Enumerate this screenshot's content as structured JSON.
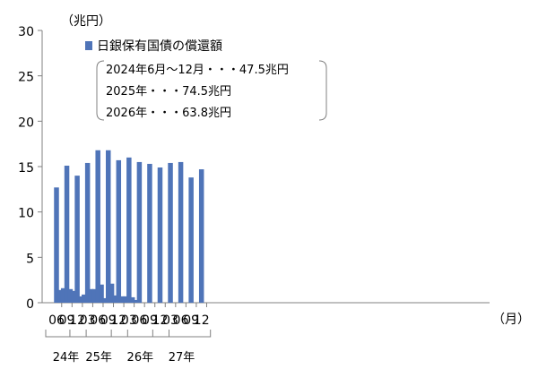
{
  "chart_data": {
    "type": "bar",
    "ylabel": "（兆円）",
    "xunit": "（月）",
    "ylim": [
      0,
      30
    ],
    "yticks": [
      0,
      5,
      10,
      15,
      20,
      25,
      30
    ],
    "grid": false,
    "legend_position": "top-left",
    "series": [
      {
        "name": "日銀保有国債の償還額",
        "color": "#4f74b8",
        "values": [
          12.7,
          1.4,
          1.6,
          15.1,
          1.5,
          1.3,
          14.0,
          0.7,
          0.9,
          15.4,
          1.5,
          1.5,
          16.8,
          2.0,
          0.5,
          16.8,
          2.1,
          0.8,
          15.7,
          0.7,
          0.7,
          16.0,
          0.6,
          0.3,
          15.5,
          15.3,
          14.9,
          15.4,
          15.5,
          13.8,
          14.7
        ]
      }
    ],
    "categories": [
      "2024-06",
      "2024-07",
      "2024-08",
      "2024-09",
      "2024-10",
      "2024-11",
      "2024-12",
      "2025-01",
      "2025-02",
      "2025-03",
      "2025-04",
      "2025-05",
      "2025-06",
      "2025-07",
      "2025-08",
      "2025-09",
      "2025-10",
      "2025-11",
      "2025-12",
      "2026-01",
      "2026-02",
      "2026-03",
      "2026-04",
      "2026-05",
      "2026-06",
      "2026-09",
      "2026-12",
      "2027-03",
      "2027-06",
      "2027-09",
      "2027-12"
    ],
    "xtick_labels": [
      "06",
      "09",
      "12",
      "03",
      "06",
      "09",
      "12",
      "03",
      "06",
      "09",
      "12",
      "03",
      "06",
      "09",
      "12"
    ],
    "year_labels": [
      "24年",
      "25年",
      "26年",
      "27年"
    ],
    "notes": [
      "2024年6月～12月・・・47.5兆円",
      "2025年・・・74.5兆円",
      "2026年・・・63.8兆円"
    ]
  }
}
